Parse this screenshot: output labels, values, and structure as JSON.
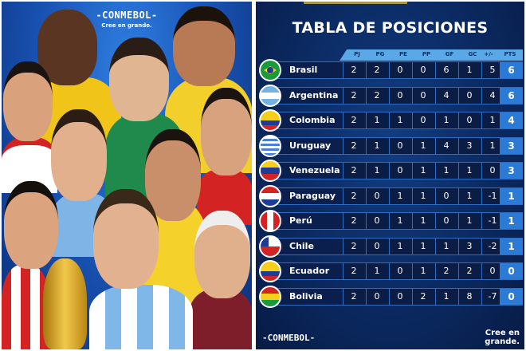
{
  "poster": {
    "logo": "-CONMEBOL-",
    "tagline": "Cree en grande.",
    "description": "Illustrated caricatures of South American national team players"
  },
  "table": {
    "title": "TABLA DE POSICIONES",
    "columns": [
      "PJ",
      "PG",
      "PE",
      "PP",
      "GF",
      "GC",
      "+/-",
      "PTS"
    ],
    "rows": [
      {
        "team": "Brasil",
        "flag": "brazil-flag",
        "pj": "2",
        "pg": "2",
        "pe": "0",
        "pp": "0",
        "gf": "6",
        "gc": "1",
        "diff": "5",
        "pts": "6"
      },
      {
        "team": "Argentina",
        "flag": "argentina-flag",
        "pj": "2",
        "pg": "2",
        "pe": "0",
        "pp": "0",
        "gf": "4",
        "gc": "0",
        "diff": "4",
        "pts": "6"
      },
      {
        "team": "Colombia",
        "flag": "colombia-flag",
        "pj": "2",
        "pg": "1",
        "pe": "1",
        "pp": "0",
        "gf": "1",
        "gc": "0",
        "diff": "1",
        "pts": "4"
      },
      {
        "team": "Uruguay",
        "flag": "uruguay-flag",
        "pj": "2",
        "pg": "1",
        "pe": "0",
        "pp": "1",
        "gf": "4",
        "gc": "3",
        "diff": "1",
        "pts": "3"
      },
      {
        "team": "Venezuela",
        "flag": "venezuela-flag",
        "pj": "2",
        "pg": "1",
        "pe": "0",
        "pp": "1",
        "gf": "1",
        "gc": "1",
        "diff": "0",
        "pts": "3"
      },
      {
        "team": "Paraguay",
        "flag": "paraguay-flag",
        "pj": "2",
        "pg": "0",
        "pe": "1",
        "pp": "1",
        "gf": "0",
        "gc": "1",
        "diff": "-1",
        "pts": "1"
      },
      {
        "team": "Perú",
        "flag": "peru-flag",
        "pj": "2",
        "pg": "0",
        "pe": "1",
        "pp": "1",
        "gf": "0",
        "gc": "1",
        "diff": "-1",
        "pts": "1"
      },
      {
        "team": "Chile",
        "flag": "chile-flag",
        "pj": "2",
        "pg": "0",
        "pe": "1",
        "pp": "1",
        "gf": "1",
        "gc": "3",
        "diff": "-2",
        "pts": "1"
      },
      {
        "team": "Ecuador",
        "flag": "ecuador-flag",
        "pj": "2",
        "pg": "1",
        "pe": "0",
        "pp": "1",
        "gf": "2",
        "gc": "2",
        "diff": "0",
        "pts": "0"
      },
      {
        "team": "Bolivia",
        "flag": "bolivia-flag",
        "pj": "2",
        "pg": "0",
        "pe": "0",
        "pp": "2",
        "gf": "1",
        "gc": "8",
        "diff": "-7",
        "pts": "0"
      }
    ],
    "footer_logo": "-CONMEBOL-",
    "footer_tagline_line1": "Cree en",
    "footer_tagline_line2": "grande."
  },
  "colors": {
    "panel_bg": "#0b2a62",
    "header_bar": "#5aa9e6",
    "pts_cell": "#2b7bd6",
    "row_bg": "#0a1f4d"
  }
}
